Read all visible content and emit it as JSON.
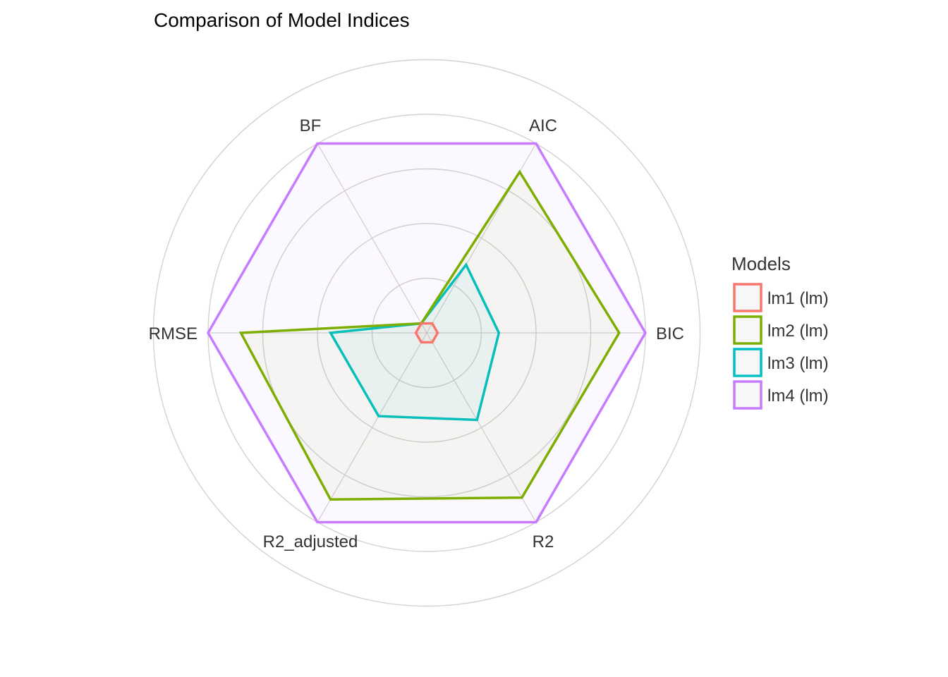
{
  "chart_data": {
    "type": "radar",
    "title": "Comparison of Model Indices",
    "axes": [
      "AIC",
      "BIC",
      "R2",
      "R2_adjusted",
      "RMSE",
      "BF"
    ],
    "rlim": [
      0,
      1
    ],
    "grid": true,
    "legend_title": "Models",
    "legend_position": "right",
    "series": [
      {
        "name": "lm1 (lm)",
        "color": "#F8766D",
        "values": [
          0.05,
          0.05,
          0.05,
          0.05,
          0.05,
          0.05
        ]
      },
      {
        "name": "lm2 (lm)",
        "color": "#7CAE00",
        "values": [
          0.85,
          0.88,
          0.87,
          0.88,
          0.85,
          0.05
        ]
      },
      {
        "name": "lm3 (lm)",
        "color": "#00BFC4",
        "values": [
          0.36,
          0.33,
          0.46,
          0.44,
          0.44,
          0.05
        ]
      },
      {
        "name": "lm4 (lm)",
        "color": "#C77CFF",
        "values": [
          1,
          1,
          1,
          1,
          1,
          1
        ]
      }
    ]
  }
}
